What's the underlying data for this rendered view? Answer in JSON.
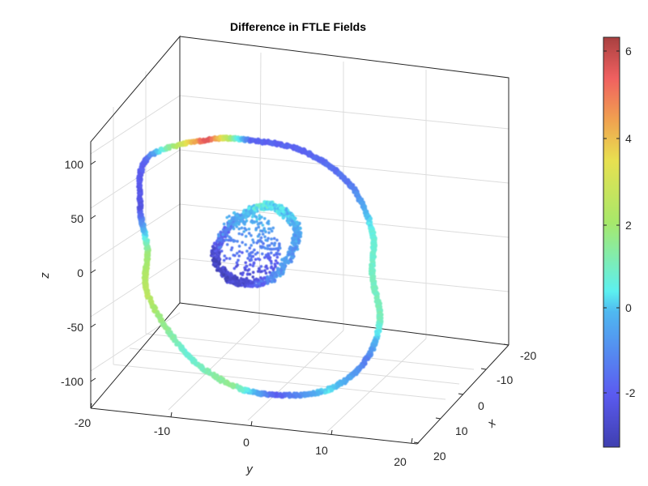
{
  "chart_data": {
    "type": "scatter",
    "projection": "3d",
    "title": "Difference in FTLE Fields",
    "xlabel": "x",
    "ylabel": "y",
    "zlabel": "z",
    "x_ticks": [
      "-20",
      "-10",
      "0",
      "10",
      "20"
    ],
    "y_ticks": [
      "-20",
      "-10",
      "0",
      "10",
      "20"
    ],
    "z_ticks": [
      "100",
      "50",
      "0",
      "-50",
      "-100"
    ],
    "xlim": [
      -20,
      20
    ],
    "ylim": [
      -20,
      20
    ],
    "zlim": [
      -125,
      125
    ],
    "grid": true,
    "colormap": "jet",
    "colorbar": {
      "ticks": [
        "6",
        "4",
        "2",
        "0",
        "-2"
      ],
      "range": [
        -3.5,
        6.5
      ],
      "placement": "right"
    },
    "series": [
      {
        "structure": "outer-loop",
        "points": [
          {
            "y": -7,
            "z": 118,
            "c": 6.0
          },
          {
            "y": -1,
            "z": 122,
            "c": -2.0
          },
          {
            "y": 6,
            "z": 117,
            "c": -2.0
          },
          {
            "y": 12,
            "z": 92,
            "c": -1.6
          },
          {
            "y": 15,
            "z": 50,
            "c": 0.5
          },
          {
            "y": 15,
            "z": 10,
            "c": 0.9
          },
          {
            "y": 16,
            "z": -30,
            "c": 1.0
          },
          {
            "y": 14,
            "z": -70,
            "c": -1.5
          },
          {
            "y": 9,
            "z": -100,
            "c": 0.2
          },
          {
            "y": 2,
            "z": -110,
            "c": -2.2
          },
          {
            "y": -4,
            "z": -105,
            "c": 1.6
          },
          {
            "y": -10,
            "z": -80,
            "c": 0.6
          },
          {
            "y": -15,
            "z": -30,
            "c": 2.5
          },
          {
            "y": -15,
            "z": 10,
            "c": 1.8
          },
          {
            "y": -16,
            "z": 50,
            "c": -2.5
          },
          {
            "y": -15,
            "z": 95,
            "c": -2.0
          }
        ]
      },
      {
        "structure": "inner-lobe",
        "points": [
          {
            "y": 3,
            "z": 60,
            "c": 0.0
          },
          {
            "y": 5,
            "z": 40,
            "c": -0.5
          },
          {
            "y": 2,
            "z": 0,
            "c": -1.0
          },
          {
            "y": -3,
            "z": -10,
            "c": -3.0
          },
          {
            "y": -6,
            "z": 10,
            "c": -3.2
          },
          {
            "y": -4,
            "z": 40,
            "c": -1.5
          },
          {
            "y": 0,
            "z": 62,
            "c": 0.5
          }
        ]
      }
    ]
  }
}
